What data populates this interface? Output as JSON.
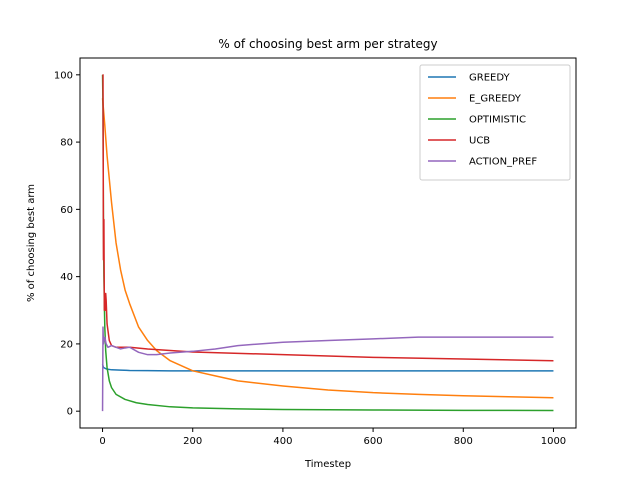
{
  "chart_data": {
    "type": "line",
    "title": "% of choosing best arm per strategy",
    "xlabel": "Timestep",
    "ylabel": "% of choosing best arm",
    "xlim": [
      -50,
      1050
    ],
    "ylim": [
      -5,
      105
    ],
    "xticks": [
      0,
      200,
      400,
      600,
      800,
      1000
    ],
    "yticks": [
      0,
      20,
      40,
      60,
      80,
      100
    ],
    "grid": false,
    "legend_position": "top-right",
    "series": [
      {
        "name": "GREEDY",
        "color": "#1f77b4",
        "x": [
          0,
          1,
          2,
          5,
          10,
          20,
          40,
          60,
          100,
          150,
          200,
          400,
          600,
          800,
          1000
        ],
        "y": [
          14,
          13.5,
          13,
          12.8,
          12.5,
          12.3,
          12.2,
          12.1,
          12.05,
          12.0,
          12.0,
          12.0,
          12.0,
          12.0,
          12.0
        ]
      },
      {
        "name": "E_GREEDY",
        "color": "#ff7f0e",
        "x": [
          0,
          5,
          10,
          20,
          30,
          40,
          50,
          60,
          80,
          100,
          120,
          150,
          200,
          250,
          300,
          400,
          500,
          600,
          700,
          800,
          900,
          1000
        ],
        "y": [
          93,
          85,
          76,
          62,
          50,
          42,
          36,
          32,
          25,
          21,
          18,
          15,
          12,
          10.5,
          9,
          7.5,
          6.3,
          5.5,
          5,
          4.6,
          4.3,
          4.0
        ]
      },
      {
        "name": "OPTIMISTIC",
        "color": "#2ca02c",
        "x": [
          0,
          1,
          2,
          3,
          4,
          5,
          7,
          10,
          15,
          20,
          30,
          50,
          75,
          100,
          150,
          200,
          300,
          400,
          600,
          800,
          1000
        ],
        "y": [
          100,
          90,
          55,
          40,
          32,
          25,
          18,
          13,
          9,
          7,
          5,
          3.5,
          2.5,
          2,
          1.3,
          1.0,
          0.7,
          0.5,
          0.35,
          0.25,
          0.2
        ]
      },
      {
        "name": "UCB",
        "color": "#d62728",
        "x": [
          0,
          1,
          2,
          3,
          4,
          5,
          6,
          7,
          8,
          10,
          15,
          20,
          30,
          40,
          60,
          100,
          200,
          400,
          600,
          800,
          1000
        ],
        "y": [
          100,
          100,
          45,
          57,
          30,
          34,
          30,
          35,
          33,
          26,
          21,
          19.5,
          19,
          19,
          19,
          18.5,
          17.6,
          16.8,
          16,
          15.5,
          15.0
        ]
      },
      {
        "name": "ACTION_PREF",
        "color": "#9467bd",
        "x": [
          0,
          1,
          2,
          3,
          5,
          8,
          12,
          20,
          30,
          40,
          50,
          60,
          80,
          100,
          120,
          150,
          200,
          250,
          300,
          400,
          500,
          600,
          700,
          800,
          900,
          1000
        ],
        "y": [
          0,
          25,
          20,
          21,
          22,
          20,
          19,
          19.5,
          19,
          18.5,
          18.8,
          19,
          17.5,
          16.8,
          16.8,
          17.3,
          17.8,
          18.5,
          19.5,
          20.5,
          21,
          21.5,
          22,
          22,
          22,
          22
        ]
      }
    ]
  }
}
